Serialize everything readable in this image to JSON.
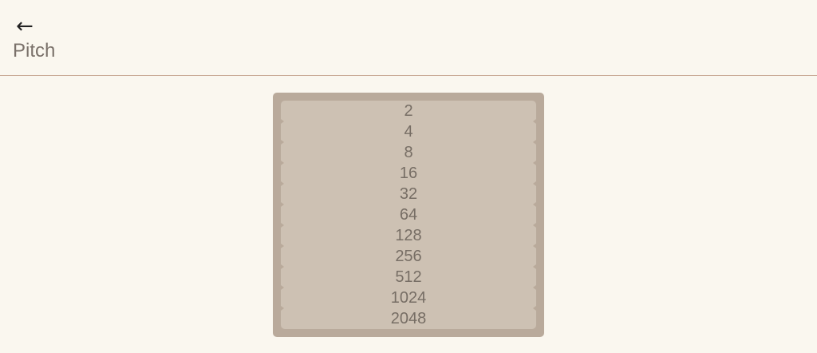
{
  "header": {
    "back_icon": "←",
    "title": "Pitch"
  },
  "tiles": [
    "2",
    "4",
    "8",
    "16",
    "32",
    "64",
    "128",
    "256",
    "512",
    "1024",
    "2048"
  ]
}
